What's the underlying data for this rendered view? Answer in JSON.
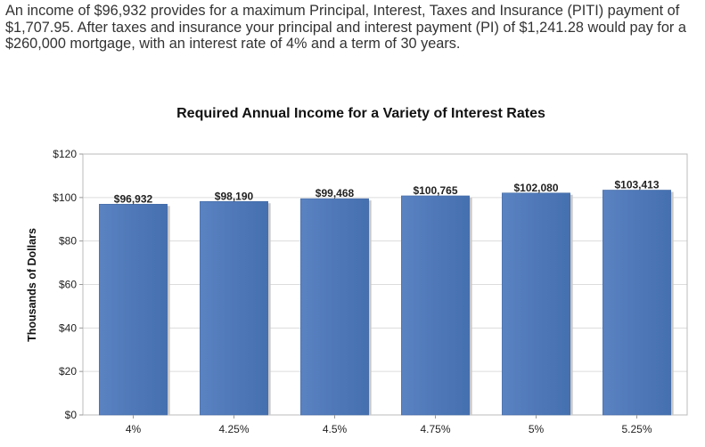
{
  "summary": {
    "text": "An income of $96,932 provides for a maximum Principal, Interest, Taxes and Insurance (PITI) payment of $1,707.95. After taxes and insurance your principal and interest payment (PI) of $1,241.28 would pay for a $260,000 mortgage, with an interest rate of 4% and a term of 30 years."
  },
  "chart_data": {
    "type": "bar",
    "title": "Required Annual Income for a Variety of Interest Rates",
    "xlabel": "",
    "ylabel": "Thousands of Dollars",
    "categories": [
      "4%",
      "4.25%",
      "4.5%",
      "4.75%",
      "5%",
      "5.25%"
    ],
    "values": [
      96.932,
      98.19,
      99.468,
      100.765,
      102.08,
      103.413
    ],
    "data_labels": [
      "$96,932",
      "$98,190",
      "$99,468",
      "$100,765",
      "$102,080",
      "$103,413"
    ],
    "ylim": [
      0,
      120
    ],
    "yticks": [
      0,
      20,
      40,
      60,
      80,
      100,
      120
    ],
    "ytick_labels": [
      "$0",
      "$20",
      "$40",
      "$60",
      "$80",
      "$100",
      "$120"
    ],
    "grid": true,
    "legend": "none",
    "bar_color": "#4f78b8"
  }
}
